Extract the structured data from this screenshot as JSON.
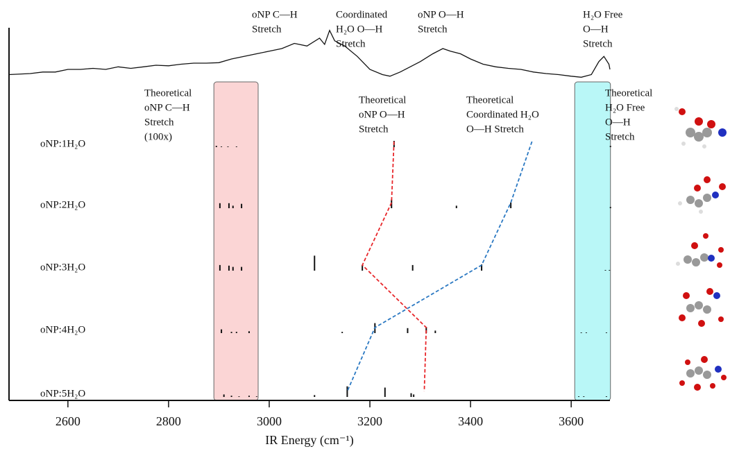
{
  "chart_data": {
    "type": "ir-stick",
    "xlabel": "IR Energy (cm⁻¹)",
    "xlim": [
      2483,
      3677
    ],
    "xticks": [
      2600,
      2800,
      3000,
      3200,
      3400,
      3600
    ],
    "spectrum": {
      "x": [
        2483,
        2525,
        2550,
        2575,
        2600,
        2625,
        2650,
        2675,
        2700,
        2725,
        2750,
        2775,
        2800,
        2825,
        2850,
        2875,
        2900,
        2925,
        2950,
        2975,
        3000,
        3025,
        3050,
        3075,
        3100,
        3110,
        3120,
        3130,
        3150,
        3175,
        3200,
        3225,
        3240,
        3260,
        3280,
        3300,
        3325,
        3345,
        3360,
        3380,
        3400,
        3425,
        3450,
        3475,
        3500,
        3525,
        3550,
        3575,
        3600,
        3620,
        3640,
        3655,
        3665,
        3675,
        3677
      ],
      "values": [
        0.1,
        0.12,
        0.15,
        0.15,
        0.2,
        0.2,
        0.22,
        0.2,
        0.25,
        0.22,
        0.25,
        0.28,
        0.27,
        0.3,
        0.32,
        0.32,
        0.33,
        0.4,
        0.45,
        0.5,
        0.55,
        0.6,
        0.7,
        0.65,
        0.8,
        0.68,
        0.95,
        0.75,
        0.65,
        0.45,
        0.2,
        0.1,
        0.07,
        0.15,
        0.25,
        0.35,
        0.5,
        0.6,
        0.55,
        0.5,
        0.4,
        0.3,
        0.25,
        0.22,
        0.2,
        0.15,
        0.12,
        0.1,
        0.07,
        0.05,
        0.1,
        0.35,
        0.45,
        0.3,
        0.2
      ]
    },
    "regions": [
      {
        "range": [
          2890,
          2978
        ],
        "color": "#fbd5d5"
      },
      {
        "range": [
          3607,
          3678
        ],
        "color": "#b9f7f7"
      }
    ],
    "rows": [
      {
        "name": "oNP:1H₂O",
        "x": [
          2895,
          2905,
          2918,
          2935,
          3248,
          3678
        ],
        "values": [
          0.1,
          0.05,
          0.05,
          0.05,
          0.5,
          0.1
        ]
      },
      {
        "name": "oNP:2H₂O",
        "x": [
          2902,
          2920,
          2928,
          2945,
          3243,
          3372,
          3480,
          3678
        ],
        "values": [
          0.4,
          0.4,
          0.2,
          0.35,
          0.7,
          0.2,
          0.45,
          0.1
        ]
      },
      {
        "name": "oNP:3H₂O",
        "x": [
          2902,
          2920,
          2928,
          2945,
          3090,
          3185,
          3285,
          3422,
          3668,
          3676
        ],
        "values": [
          0.45,
          0.4,
          0.3,
          0.3,
          1.2,
          0.45,
          0.45,
          0.5,
          0.05,
          0.05
        ]
      },
      {
        "name": "oNP:4H₂O",
        "x": [
          2905,
          2925,
          2935,
          2960,
          3145,
          3210,
          3275,
          3312,
          3330,
          3620,
          3630,
          3670
        ],
        "values": [
          0.3,
          0.1,
          0.1,
          0.15,
          0.1,
          0.8,
          0.4,
          0.5,
          0.2,
          0.05,
          0.05,
          0.05
        ]
      },
      {
        "name": "oNP:5H₂O",
        "x": [
          2910,
          2925,
          2940,
          2960,
          2975,
          3090,
          3155,
          3230,
          3282,
          3287,
          3615,
          3625,
          3670
        ],
        "values": [
          0.2,
          0.1,
          0.05,
          0.1,
          0.05,
          0.15,
          0.85,
          0.75,
          0.3,
          0.2,
          0.05,
          0.05,
          0.05
        ]
      }
    ],
    "series": [
      {
        "color": "#e8262a",
        "values": [
          3248,
          3243,
          3185,
          3312,
          3308
        ]
      },
      {
        "color": "#2a78c2",
        "values": [
          3522,
          3480,
          3422,
          3210,
          3155
        ]
      }
    ],
    "annotations": [
      {
        "lines": [
          "oNP C—H",
          "Stretch"
        ]
      },
      {
        "lines": [
          "Coordinated",
          "H₂O O—H",
          "Stretch"
        ]
      },
      {
        "lines": [
          "oNP O—H",
          "Stretch"
        ]
      },
      {
        "lines": [
          "H₂O Free",
          "O—H",
          "Stretch"
        ]
      },
      {
        "lines": [
          "Theoretical",
          "oNP C—H",
          "Stretch",
          "(100x)"
        ]
      },
      {
        "lines": [
          "Theoretical",
          "oNP O—H",
          "Stretch"
        ]
      },
      {
        "lines": [
          "Theoretical",
          "Coordinated H₂O",
          "O—H Stretch"
        ]
      },
      {
        "lines": [
          "Theoretical",
          "H₂O Free",
          "O—H",
          "Stretch"
        ]
      }
    ]
  }
}
